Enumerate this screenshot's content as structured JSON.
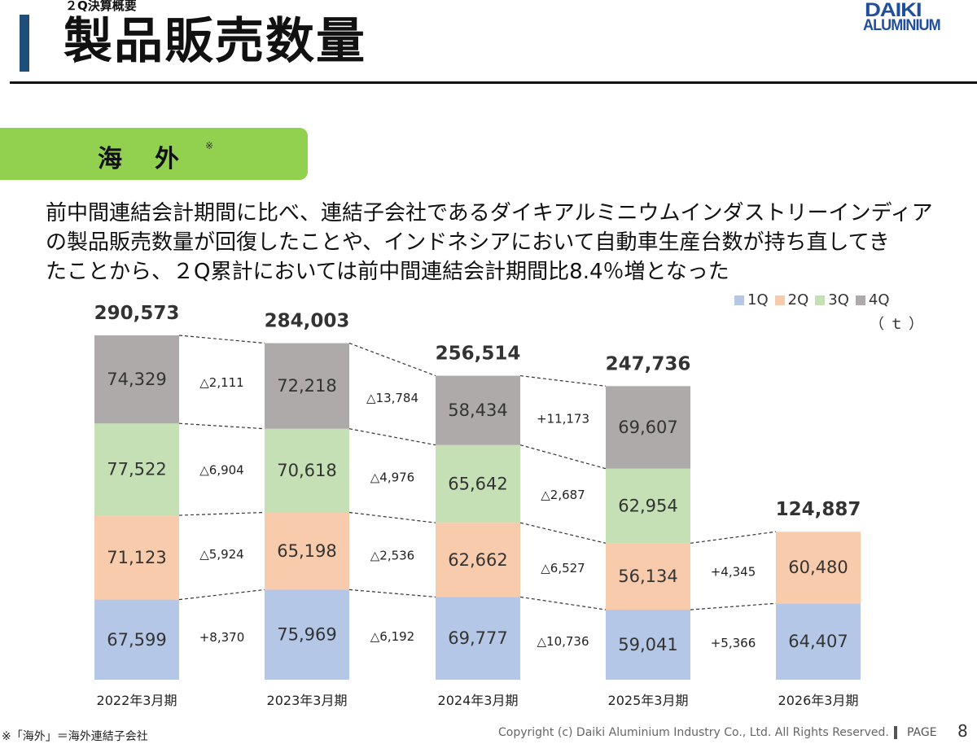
{
  "header": {
    "subtitle": "２Q決算概要",
    "title": "製品販売数量",
    "logo_line1": "DAIKI",
    "logo_line2": "ALUMINIUM"
  },
  "section": {
    "label": "海外",
    "note_mark": "※"
  },
  "description": [
    "前中間連結会計期間に比べ、連結子会社であるダイキアルミニウムインダストリーインディア",
    "の製品販売数量が回復したことや、インドネシアにおいて自動車生産台数が持ち直してき",
    "たことから、２Q累計においては前中間連結会計期間比8.4％増となった"
  ],
  "legend_unit": "（ｔ）",
  "chart_data": {
    "type": "bar",
    "stacked": true,
    "unit": "t",
    "categories": [
      "2022年3月期",
      "2023年3月期",
      "2024年3月期",
      "2025年3月期",
      "2026年3月期"
    ],
    "series": [
      {
        "name": "1Q",
        "color": "#b4c7e7",
        "values": [
          67599,
          75969,
          69777,
          59041,
          64407
        ],
        "labels": [
          "67,599",
          "75,969",
          "69,777",
          "59,041",
          "64,407"
        ]
      },
      {
        "name": "2Q",
        "color": "#f8cbad",
        "values": [
          71123,
          65198,
          62662,
          56134,
          60480
        ],
        "labels": [
          "71,123",
          "65,198",
          "62,662",
          "56,134",
          "60,480"
        ]
      },
      {
        "name": "3Q",
        "color": "#c5e0b4",
        "values": [
          77522,
          70618,
          65642,
          62954,
          null
        ],
        "labels": [
          "77,522",
          "70,618",
          "65,642",
          "62,954",
          ""
        ]
      },
      {
        "name": "4Q",
        "color": "#aeaaaa",
        "values": [
          74329,
          72218,
          58434,
          69607,
          null
        ],
        "labels": [
          "74,329",
          "72,218",
          "58,434",
          "69,607",
          ""
        ]
      }
    ],
    "totals": [
      290573,
      284003,
      256514,
      247736,
      124887
    ],
    "total_labels": [
      "290,573",
      "284,003",
      "256,514",
      "247,736",
      "124,887"
    ],
    "changes": [
      [
        "+8,370",
        "△5,924",
        "△6,904",
        "△2,111"
      ],
      [
        "△6,192",
        "△2,536",
        "△4,976",
        "△13,784"
      ],
      [
        "△10,736",
        "△6,527",
        "△2,687",
        "+11,173"
      ],
      [
        "+5,366",
        "+4,345",
        "",
        ""
      ]
    ]
  },
  "footer": {
    "note": "※「海外」＝海外連結子会社",
    "copyright": "Copyright (c) Daiki Aluminium Industry Co., Ltd. All Rights Reserved.",
    "page_label": "PAGE",
    "page_number": "8"
  }
}
